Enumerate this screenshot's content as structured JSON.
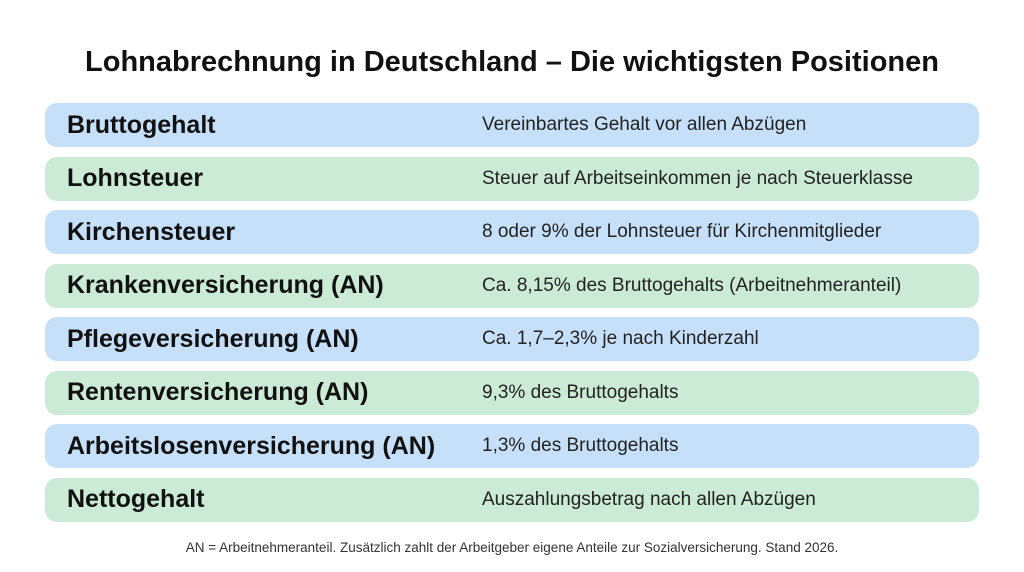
{
  "title": "Lohnabrechnung in Deutschland – Die wichtigsten Positionen",
  "rows": [
    {
      "term": "Bruttogehalt",
      "description": "Vereinbartes Gehalt vor allen Abzügen"
    },
    {
      "term": "Lohnsteuer",
      "description": "Steuer auf Arbeitseinkommen je nach Steuerklasse"
    },
    {
      "term": "Kirchensteuer",
      "description": "8 oder 9% der Lohnsteuer für Kirchenmitglieder"
    },
    {
      "term": "Krankenversicherung (AN)",
      "description": "Ca. 8,15% des Bruttogehalts (Arbeitnehmeranteil)"
    },
    {
      "term": "Pflegeversicherung (AN)",
      "description": "Ca. 1,7–2,3% je nach Kinderzahl"
    },
    {
      "term": "Rentenversicherung (AN)",
      "description": "9,3% des Bruttogehalts"
    },
    {
      "term": "Arbeitslosenversicherung (AN)",
      "description": "1,3% des Bruttogehalts"
    },
    {
      "term": "Nettogehalt",
      "description": "Auszahlungsbetrag nach allen Abzügen"
    }
  ],
  "footnote": "AN = Arbeitnehmeranteil. Zusätzlich zahlt der Arbeitgeber eigene Anteile zur Sozialversicherung. Stand 2026."
}
